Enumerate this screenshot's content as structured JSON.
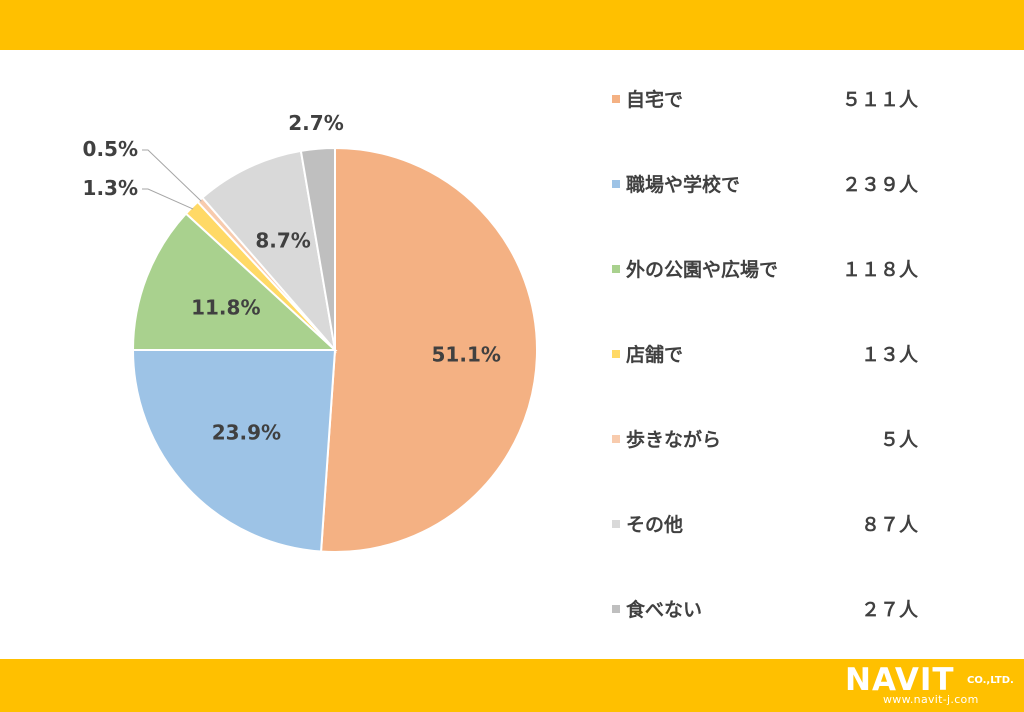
{
  "colors": {
    "band": "#FFC000",
    "text": "#404040"
  },
  "chart_data": {
    "type": "pie",
    "categories": [
      "自宅で",
      "職場や学校で",
      "外の公園や広場で",
      "店舗で",
      "歩きながら",
      "その他",
      "食べない"
    ],
    "counts": [
      511,
      239,
      118,
      13,
      5,
      87,
      27
    ],
    "count_labels": [
      "５１１人",
      "２３９人",
      "１１８人",
      "１３人",
      "５人",
      "８７人",
      "２７人"
    ],
    "percent_labels": [
      "51.1%",
      "23.9%",
      "11.8%",
      "1.3%",
      "0.5%",
      "8.7%",
      "2.7%"
    ],
    "colors": [
      "#F4B183",
      "#9DC3E6",
      "#A9D18E",
      "#FFD966",
      "#F8CBAD",
      "#D9D9D9",
      "#BFBFBF"
    ],
    "legend_position": "right"
  },
  "logo": {
    "text": "NAVIT",
    "suffix": "CO.,LTD.",
    "url": "www.navit-j.com"
  }
}
